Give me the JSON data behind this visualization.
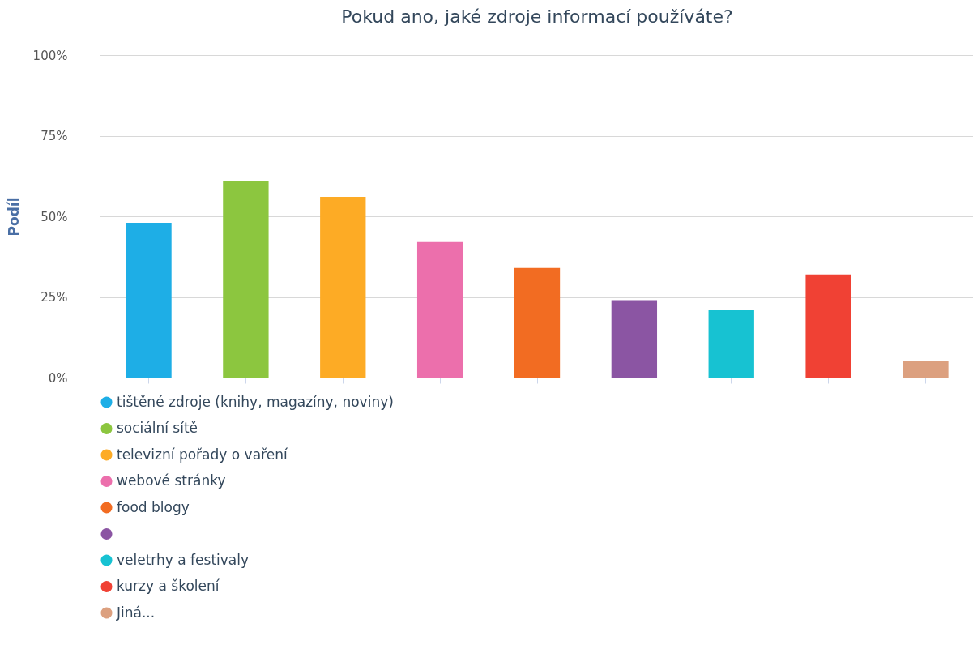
{
  "chart_data": {
    "type": "bar",
    "title": "Pokud ano, jaké zdroje informací používáte?",
    "ylabel": "Podíl",
    "categories": [
      null,
      null,
      null,
      null,
      null,
      null,
      null,
      null,
      null
    ],
    "series": [
      {
        "name": "tištěné zdroje (knihy, magazíny, noviny)",
        "color": "#1eaee6",
        "values": [
          48,
          null,
          null,
          null,
          null,
          null,
          null,
          null,
          null
        ]
      },
      {
        "name": "sociální sítě",
        "color": "#8cc63f",
        "values": [
          null,
          61,
          null,
          null,
          null,
          null,
          null,
          null,
          null
        ]
      },
      {
        "name": "televizní pořady o vaření",
        "color": "#fdab25",
        "values": [
          null,
          null,
          56,
          null,
          null,
          null,
          null,
          null,
          null
        ]
      },
      {
        "name": "webové stránky",
        "color": "#ec6fac",
        "values": [
          null,
          null,
          null,
          42,
          null,
          null,
          null,
          null,
          null
        ]
      },
      {
        "name": "food blogy",
        "color": "#f26c22",
        "values": [
          null,
          null,
          null,
          null,
          34,
          null,
          null,
          null,
          null
        ]
      },
      {
        "color": "#8b55a3",
        "values": [
          null,
          null,
          null,
          null,
          null,
          24,
          null,
          null,
          null
        ]
      },
      {
        "name": "veletrhy a festivaly",
        "color": "#17c2d2",
        "values": [
          null,
          null,
          null,
          null,
          null,
          null,
          21,
          null,
          null
        ]
      },
      {
        "name": "kurzy a školení",
        "color": "#f04134",
        "values": [
          null,
          null,
          null,
          null,
          null,
          null,
          null,
          32,
          null
        ]
      },
      {
        "name": "Jiná...",
        "color": "#dca07f",
        "values": [
          null,
          null,
          null,
          null,
          null,
          null,
          null,
          null,
          5
        ]
      }
    ],
    "ylim": [
      0,
      100
    ],
    "yticks": [
      {
        "value": 0,
        "label": "0%"
      },
      {
        "value": 25,
        "label": "25%"
      },
      {
        "value": 50,
        "label": "50%"
      },
      {
        "value": 75,
        "label": "75%"
      },
      {
        "value": 100,
        "label": "100%"
      }
    ],
    "grid": "y",
    "legend": "bottom",
    "tick_labels": "y"
  }
}
